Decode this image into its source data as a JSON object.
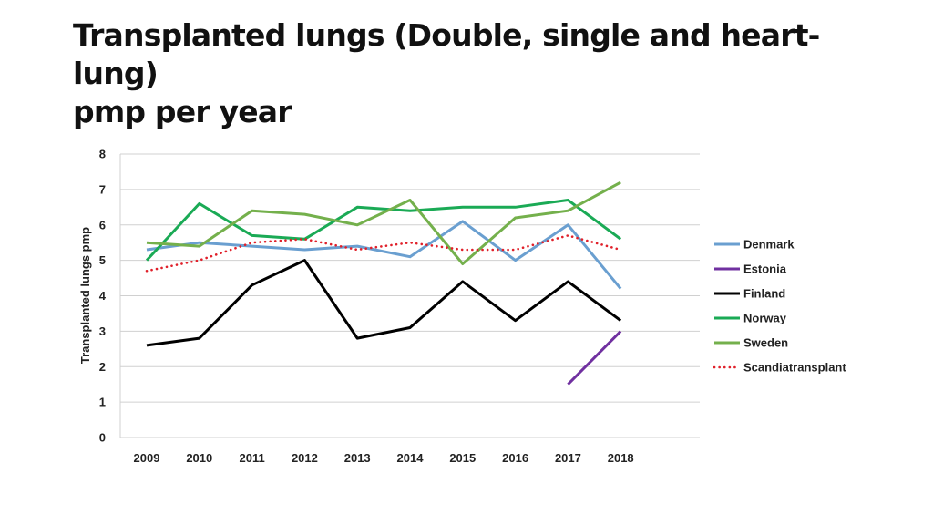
{
  "slide": {
    "title_line1": "Transplanted lungs (Double, single and heart-lung)",
    "title_line2": "pmp per year"
  },
  "chart_data": {
    "type": "line",
    "title": "",
    "xlabel": "",
    "ylabel": "Transplanted lungs pmp",
    "ylim": [
      0,
      8
    ],
    "yticks": [
      0,
      1,
      2,
      3,
      4,
      5,
      6,
      7,
      8
    ],
    "grid": true,
    "legend_position": "right",
    "categories": [
      "2009",
      "2010",
      "2011",
      "2012",
      "2013",
      "2014",
      "2015",
      "2016",
      "2017",
      "2018"
    ],
    "series": [
      {
        "name": "Denmark",
        "color": "#6a9fd0",
        "style": "solid",
        "values": [
          5.3,
          5.5,
          5.4,
          5.3,
          5.4,
          5.1,
          6.1,
          5.0,
          6.0,
          4.2
        ]
      },
      {
        "name": "Estonia",
        "color": "#7030a0",
        "style": "solid",
        "values": [
          null,
          null,
          null,
          null,
          null,
          null,
          null,
          null,
          1.5,
          3.0
        ]
      },
      {
        "name": "Finland",
        "color": "#000000",
        "style": "solid",
        "values": [
          2.6,
          2.8,
          4.3,
          5.0,
          2.8,
          3.1,
          4.4,
          3.3,
          4.4,
          3.3
        ]
      },
      {
        "name": "Norway",
        "color": "#1aaa55",
        "style": "solid",
        "values": [
          5.0,
          6.6,
          5.7,
          5.6,
          6.5,
          6.4,
          6.5,
          6.5,
          6.7,
          5.6
        ]
      },
      {
        "name": "Sweden",
        "color": "#74b04c",
        "style": "solid",
        "values": [
          5.5,
          5.4,
          6.4,
          6.3,
          6.0,
          6.7,
          4.9,
          6.2,
          6.4,
          7.2
        ]
      },
      {
        "name": "Scandiatransplant",
        "color": "#e0202a",
        "style": "dotted",
        "values": [
          4.7,
          5.0,
          5.5,
          5.6,
          5.3,
          5.5,
          5.3,
          5.3,
          5.7,
          5.3
        ]
      }
    ]
  }
}
